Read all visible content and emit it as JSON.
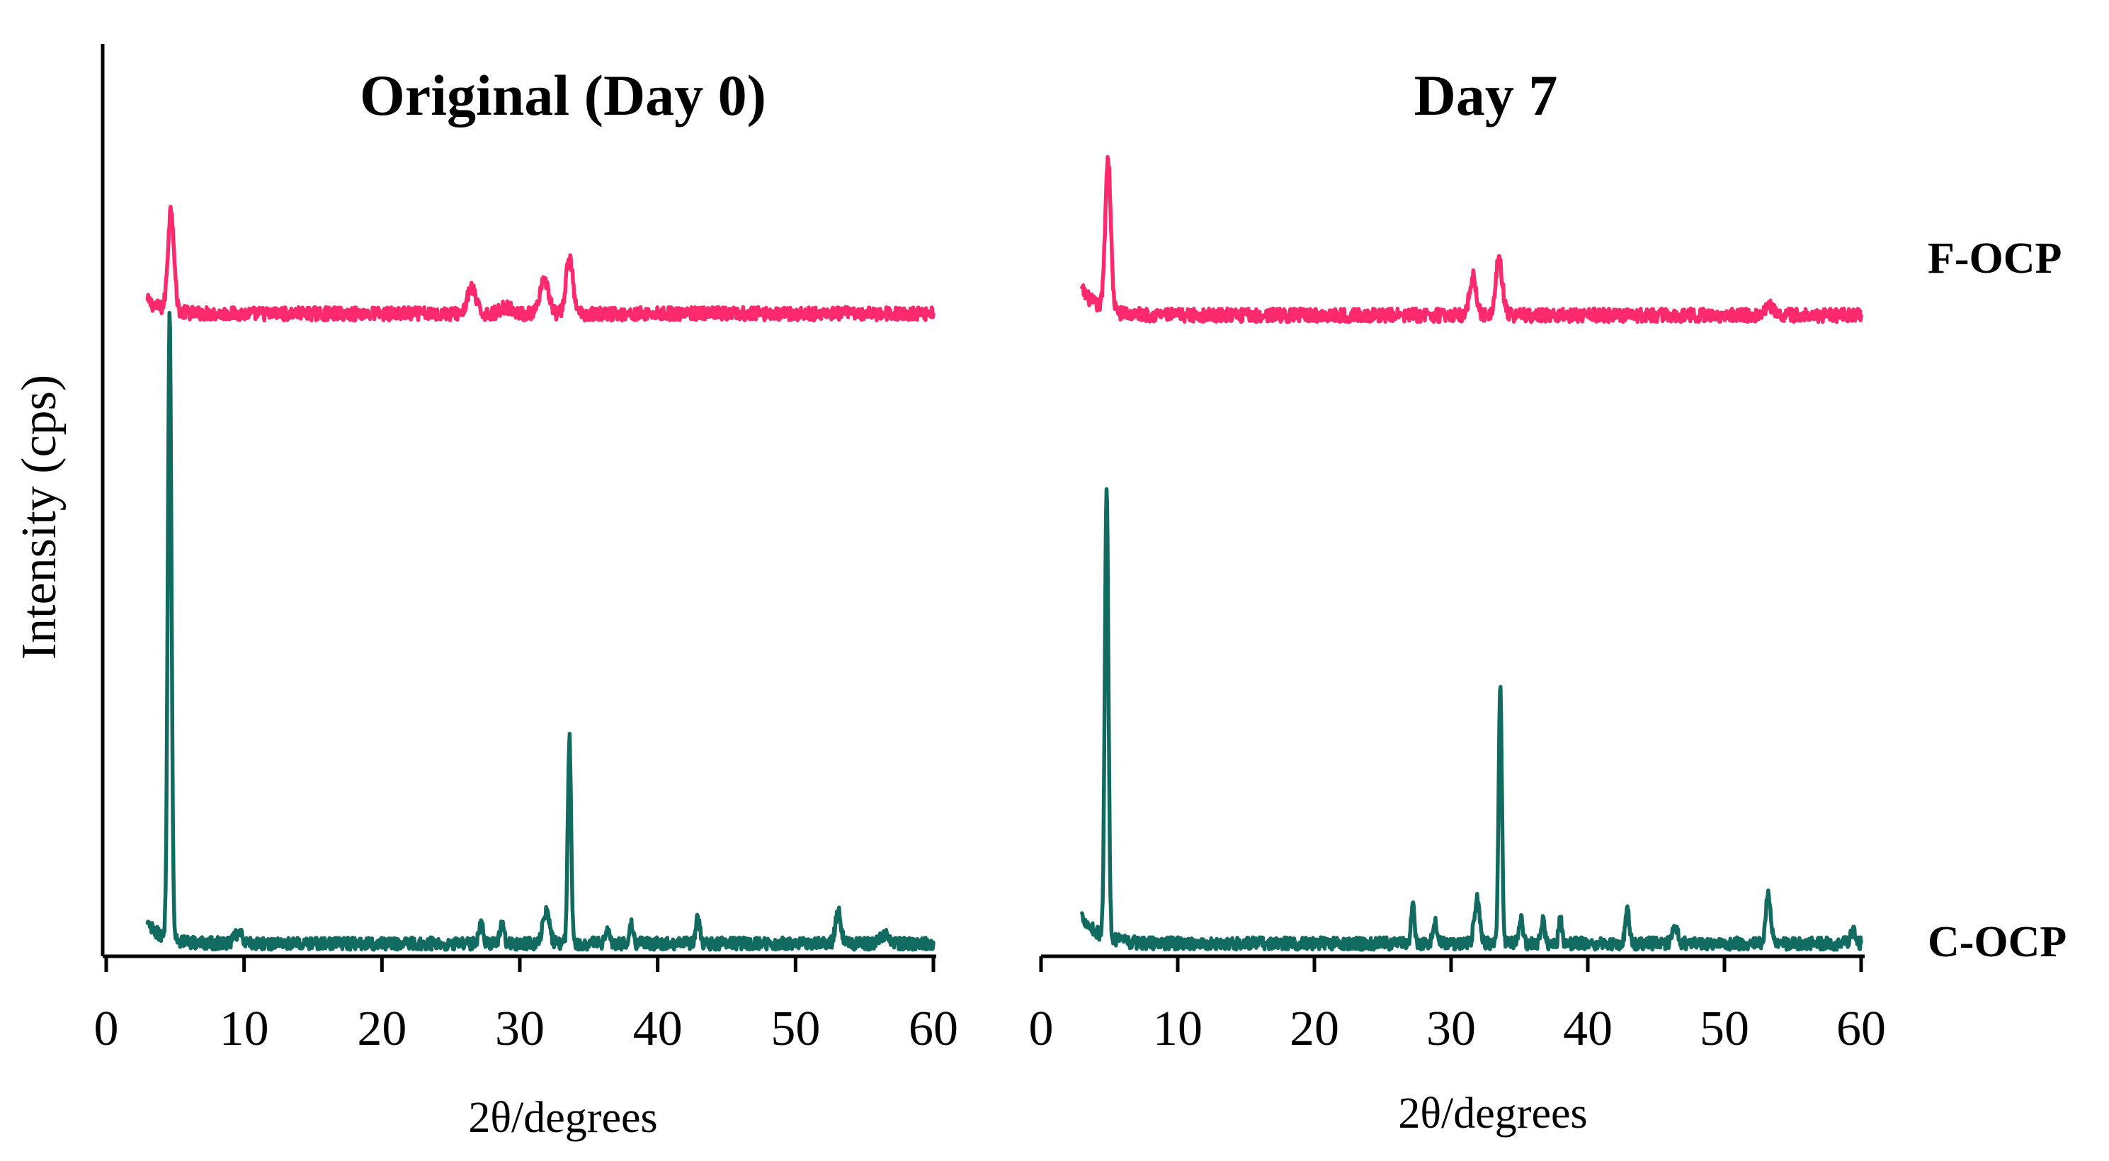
{
  "y_axis_label": "Intensity (cps)",
  "colors": {
    "F-OCP": "#ff2a6d",
    "C-OCP": "#116b61"
  },
  "series_labels": {
    "top": "F-OCP",
    "bottom": "C-OCP"
  },
  "chart_data": [
    {
      "type": "line",
      "title": "Original (Day 0)",
      "xlabel": "2θ/degrees",
      "ylabel": "Intensity (cps)",
      "xlim": [
        0,
        60
      ],
      "xticks": [
        "0",
        "10",
        "20",
        "30",
        "40",
        "50",
        "60"
      ],
      "x_range": [
        3,
        60
      ],
      "series": [
        {
          "name": "F-OCP",
          "baseline": 0.075,
          "start_bump": 0.015,
          "peaks": [
            [
              4.7,
              0.12,
              0.22
            ],
            [
              26.5,
              0.03,
              0.3
            ],
            [
              31.8,
              0.04,
              0.3
            ],
            [
              33.6,
              0.065,
              0.25
            ],
            [
              29,
              0.008,
              0.4
            ]
          ],
          "noise": 0.008
        },
        {
          "name": "C-OCP",
          "baseline": 0,
          "start_bump": 0.03,
          "peaks": [
            [
              4.6,
              1.0,
              0.13
            ],
            [
              33.6,
              0.33,
              0.12
            ],
            [
              31.9,
              0.05,
              0.25
            ],
            [
              27.2,
              0.035,
              0.15
            ],
            [
              28.7,
              0.03,
              0.15
            ],
            [
              36.4,
              0.025,
              0.15
            ],
            [
              38.1,
              0.03,
              0.12
            ],
            [
              42.9,
              0.04,
              0.15
            ],
            [
              53.1,
              0.05,
              0.2
            ],
            [
              9.6,
              0.015,
              0.3
            ],
            [
              56.5,
              0.015,
              0.3
            ]
          ],
          "noise": 0.01
        }
      ]
    },
    {
      "type": "line",
      "title": "Day 7",
      "xlabel": "2θ/degrees",
      "ylabel": "Intensity (cps)",
      "xlim": [
        0,
        60
      ],
      "xticks": [
        "0",
        "10",
        "20",
        "30",
        "40",
        "50",
        "60"
      ],
      "x_range": [
        3,
        60
      ],
      "series": [
        {
          "name": "F-OCP",
          "baseline": 0.075,
          "start_bump": 0.03,
          "peaks": [
            [
              4.9,
              0.18,
              0.2
            ],
            [
              31.6,
              0.045,
              0.25
            ],
            [
              33.5,
              0.065,
              0.25
            ],
            [
              53.3,
              0.01,
              0.3
            ]
          ],
          "noise": 0.008
        },
        {
          "name": "C-OCP",
          "baseline": 0,
          "start_bump": 0.045,
          "peaks": [
            [
              4.8,
              0.72,
              0.13
            ],
            [
              33.6,
              0.41,
              0.12
            ],
            [
              31.9,
              0.07,
              0.2
            ],
            [
              27.2,
              0.07,
              0.12
            ],
            [
              28.8,
              0.035,
              0.15
            ],
            [
              35.1,
              0.04,
              0.15
            ],
            [
              36.7,
              0.035,
              0.15
            ],
            [
              38.0,
              0.04,
              0.12
            ],
            [
              42.9,
              0.055,
              0.15
            ],
            [
              46.4,
              0.025,
              0.2
            ],
            [
              53.2,
              0.08,
              0.18
            ],
            [
              59.4,
              0.02,
              0.2
            ]
          ],
          "noise": 0.01
        }
      ]
    }
  ]
}
